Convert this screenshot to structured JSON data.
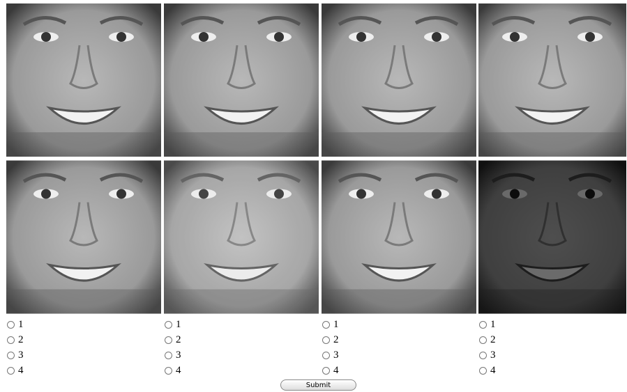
{
  "columns": [
    {
      "options": [
        "1",
        "2",
        "3",
        "4"
      ]
    },
    {
      "options": [
        "1",
        "2",
        "3",
        "4"
      ]
    },
    {
      "options": [
        "1",
        "2",
        "3",
        "4"
      ]
    },
    {
      "options": [
        "1",
        "2",
        "3",
        "4"
      ]
    }
  ],
  "submit": "Submit"
}
